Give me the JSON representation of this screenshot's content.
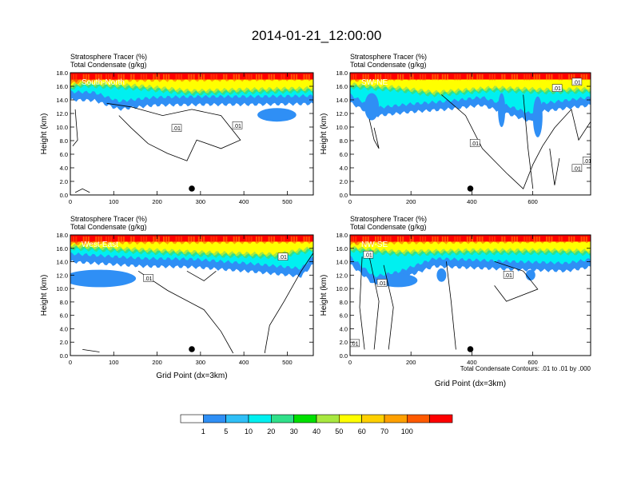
{
  "title": "2014-01-21_12:00:00",
  "footer_note": "Total Condensate Contours: .01 to .01 by .000",
  "colorbar": {
    "colors": [
      "#ffffff",
      "#2f8ff5",
      "#2fbff7",
      "#00f0f0",
      "#30e08a",
      "#00e000",
      "#a8e840",
      "#ffff00",
      "#ffd000",
      "#ffa000",
      "#ff5a00",
      "#ff0000"
    ],
    "labels": [
      "1",
      "5",
      "10",
      "20",
      "30",
      "40",
      "50",
      "60",
      "70",
      "100"
    ]
  },
  "chart_data": [
    {
      "type": "heatmap",
      "panel_label": "South-North",
      "title_lines": [
        "Stratosphere Tracer   (%)",
        "Total Condensate   (g/kg)"
      ],
      "xlabel": "",
      "ylabel": "Height (km)",
      "xlim": [
        0,
        560
      ],
      "ylim": [
        0,
        18
      ],
      "xticks": [
        0,
        100,
        200,
        300,
        400,
        500
      ],
      "yticks": [
        "0.0",
        "2.0",
        "4.0",
        "6.0",
        "8.0",
        "10.0",
        "12.0",
        "14.0",
        "16.0",
        "18.0"
      ],
      "marker_x": 280,
      "contour_labels": [
        {
          "text": ".01",
          "x": 245,
          "y": 9.8
        },
        {
          "text": ".01",
          "x": 385,
          "y": 10.2
        }
      ]
    },
    {
      "type": "heatmap",
      "panel_label": "SW-NE",
      "title_lines": [
        "Stratosphere Tracer   (%)",
        "Total Condensate   (g/kg)"
      ],
      "xlabel": "",
      "ylabel": "Height (km)",
      "xlim": [
        0,
        790
      ],
      "ylim": [
        0,
        18
      ],
      "xticks": [
        0,
        200,
        400,
        600
      ],
      "yticks": [
        "0.0",
        "2.0",
        "4.0",
        "6.0",
        "8.0",
        "10.0",
        "12.0",
        "14.0",
        "16.0",
        "18.0"
      ],
      "marker_x": 395,
      "contour_labels": [
        {
          "text": ".01",
          "x": 680,
          "y": 15.7
        },
        {
          "text": ".01",
          "x": 745,
          "y": 16.6
        },
        {
          "text": ".01",
          "x": 410,
          "y": 7.6
        },
        {
          "text": ".01",
          "x": 745,
          "y": 3.9
        },
        {
          "text": ".01",
          "x": 780,
          "y": 5.0
        }
      ]
    },
    {
      "type": "heatmap",
      "panel_label": "West-East",
      "title_lines": [
        "Stratosphere Tracer   (%)",
        "Total Condensate   (g/kg)"
      ],
      "xlabel": "Grid Point (dx=3km)",
      "ylabel": "Height (km)",
      "xlim": [
        0,
        560
      ],
      "ylim": [
        0,
        18
      ],
      "xticks": [
        0,
        100,
        200,
        300,
        400,
        500
      ],
      "yticks": [
        "0.0",
        "2.0",
        "4.0",
        "6.0",
        "8.0",
        "10.0",
        "12.0",
        "14.0",
        "16.0",
        "18.0"
      ],
      "marker_x": 280,
      "contour_labels": [
        {
          "text": ".01",
          "x": 180,
          "y": 11.5
        },
        {
          "text": ".01",
          "x": 490,
          "y": 14.7
        }
      ]
    },
    {
      "type": "heatmap",
      "panel_label": "NW-SE",
      "title_lines": [
        "Stratosphere Tracer   (%)",
        "Total Condensate   (g/kg)"
      ],
      "xlabel": "Grid Point (dx=3km)",
      "ylabel": "Height (km)",
      "xlim": [
        0,
        790
      ],
      "ylim": [
        0,
        18
      ],
      "xticks": [
        0,
        200,
        400,
        600
      ],
      "yticks": [
        "0.0",
        "2.0",
        "4.0",
        "6.0",
        "8.0",
        "10.0",
        "12.0",
        "14.0",
        "16.0",
        "18.0"
      ],
      "marker_x": 395,
      "contour_labels": [
        {
          "text": ".01",
          "x": 60,
          "y": 15.0
        },
        {
          "text": ".01",
          "x": 105,
          "y": 10.8
        },
        {
          "text": ".01",
          "x": 520,
          "y": 12.0
        },
        {
          "text": ".01",
          "x": 15,
          "y": 1.8
        }
      ]
    }
  ]
}
